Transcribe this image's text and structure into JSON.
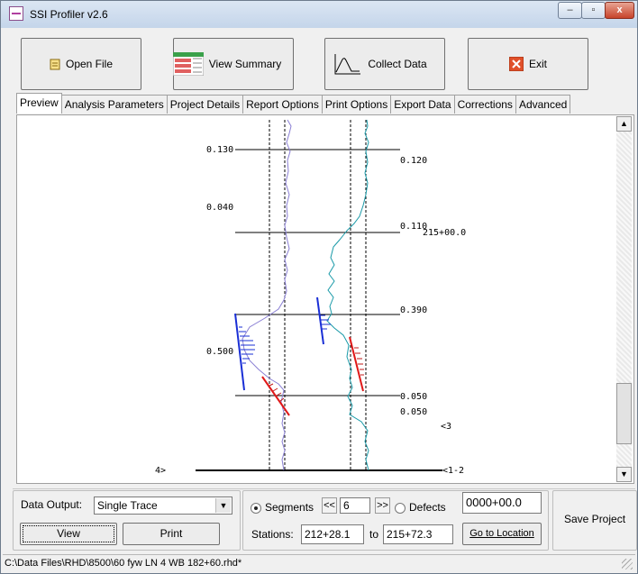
{
  "window": {
    "title": "SSI Profiler v2.6",
    "controls": {
      "minimize": "–",
      "maximize": "▫",
      "close": "x"
    }
  },
  "toolbar": {
    "open_file": "Open File",
    "view_summary": "View Summary",
    "collect_data": "Collect Data",
    "exit": "Exit"
  },
  "tabs": [
    {
      "label": "Preview",
      "active": true
    },
    {
      "label": "Analysis Parameters"
    },
    {
      "label": "Project Details"
    },
    {
      "label": "Report Options"
    },
    {
      "label": "Print Options"
    },
    {
      "label": "Export Data"
    },
    {
      "label": "Corrections"
    },
    {
      "label": "Advanced"
    }
  ],
  "preview": {
    "left_labels": [
      "0.130",
      "0.040",
      "0.500"
    ],
    "right_labels": [
      "0.120",
      "0.110",
      "0.390",
      "0.050",
      "0.050"
    ],
    "station_label": "215+00.0",
    "marker_3": "<3",
    "marker_4": "4>",
    "marker_12": "<1-2",
    "colors": {
      "trace_left": "#8a7fd4",
      "trace_right": "#1a9aa8",
      "blue_event": "#1a2fd6",
      "red_event": "#e01818"
    }
  },
  "controls": {
    "data_output_label": "Data Output:",
    "data_output_value": "Single Trace",
    "view": "View",
    "print": "Print",
    "segments_label": "Segments",
    "prev": "<<",
    "segment_value": "6",
    "next": ">>",
    "defects_label": "Defects",
    "stations_label": "Stations:",
    "station_from": "212+28.1",
    "to_label": "to",
    "station_to": "215+72.3",
    "location_value": "0000+00.0",
    "go_to_location": "Go to Location",
    "save_project": "Save Project"
  },
  "status_bar": {
    "path": "C:\\Data Files\\RHD\\8500\\60 fyw LN 4 WB 182+60.rhd*"
  }
}
